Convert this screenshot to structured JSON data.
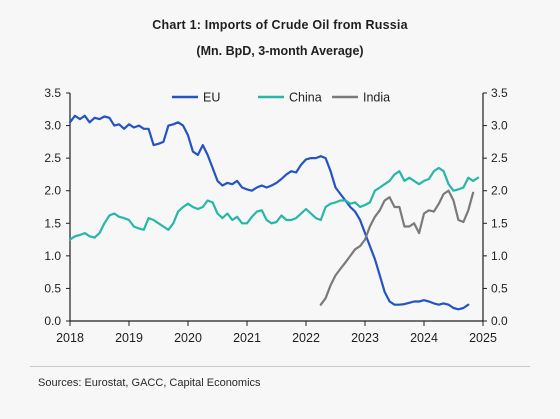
{
  "colors": {
    "EU": "#2453c3",
    "China": "#27b7a8",
    "India": "#7a7a7a",
    "axis": "#1f1f1f"
  },
  "header": {
    "title": "Chart 1: Imports of Crude Oil from Russia",
    "subtitle": "(Mn. BpD, 3-month Average)"
  },
  "footer": {
    "source": "Sources: Eurostat, GACC, Capital Economics"
  },
  "chart_data": {
    "type": "line",
    "title": "Chart 1: Imports of Crude Oil from Russia",
    "subtitle": "(Mn. BpD, 3-month Average)",
    "xlabel": "",
    "ylabel": "",
    "xlim": [
      2018,
      2025
    ],
    "ylim": [
      0,
      3.5
    ],
    "x_ticks": [
      "2018",
      "2019",
      "2020",
      "2021",
      "2022",
      "2023",
      "2024",
      "2025"
    ],
    "y_ticks_left": [
      "0.0",
      "0.5",
      "1.0",
      "1.5",
      "2.0",
      "2.5",
      "3.0",
      "3.5"
    ],
    "y_ticks_right": [
      "0.0",
      "0.5",
      "1.0",
      "1.5",
      "2.0",
      "2.5",
      "3.0",
      "3.5"
    ],
    "grid": false,
    "legend": "top-center",
    "series": [
      {
        "name": "EU",
        "x": [
          2018.0,
          2018.083,
          2018.167,
          2018.25,
          2018.333,
          2018.417,
          2018.5,
          2018.583,
          2018.667,
          2018.75,
          2018.833,
          2018.917,
          2019.0,
          2019.083,
          2019.167,
          2019.25,
          2019.333,
          2019.417,
          2019.5,
          2019.583,
          2019.667,
          2019.75,
          2019.833,
          2019.917,
          2020.0,
          2020.083,
          2020.167,
          2020.25,
          2020.333,
          2020.417,
          2020.5,
          2020.583,
          2020.667,
          2020.75,
          2020.833,
          2020.917,
          2021.0,
          2021.083,
          2021.167,
          2021.25,
          2021.333,
          2021.417,
          2021.5,
          2021.583,
          2021.667,
          2021.75,
          2021.833,
          2021.917,
          2022.0,
          2022.083,
          2022.167,
          2022.25,
          2022.333,
          2022.417,
          2022.5,
          2022.583,
          2022.667,
          2022.75,
          2022.833,
          2022.917,
          2023.0,
          2023.083,
          2023.167,
          2023.25,
          2023.333,
          2023.417,
          2023.5,
          2023.583,
          2023.667,
          2023.75,
          2023.833,
          2023.917,
          2024.0,
          2024.083,
          2024.167,
          2024.25,
          2024.333,
          2024.417,
          2024.5,
          2024.583,
          2024.667,
          2024.75
        ],
        "y": [
          3.05,
          3.15,
          3.1,
          3.15,
          3.05,
          3.12,
          3.1,
          3.14,
          3.12,
          3.0,
          3.02,
          2.95,
          3.02,
          2.97,
          3.0,
          2.95,
          2.95,
          2.7,
          2.72,
          2.75,
          3.0,
          3.02,
          3.05,
          3.0,
          2.85,
          2.6,
          2.55,
          2.7,
          2.55,
          2.35,
          2.15,
          2.08,
          2.12,
          2.1,
          2.15,
          2.05,
          2.02,
          2.0,
          2.05,
          2.08,
          2.05,
          2.08,
          2.12,
          2.18,
          2.25,
          2.3,
          2.28,
          2.4,
          2.48,
          2.5,
          2.5,
          2.53,
          2.5,
          2.3,
          2.05,
          1.95,
          1.85,
          1.75,
          1.68,
          1.55,
          1.35,
          1.15,
          0.95,
          0.7,
          0.45,
          0.3,
          0.25,
          0.25,
          0.26,
          0.28,
          0.3,
          0.3,
          0.32,
          0.3,
          0.27,
          0.25,
          0.27,
          0.25,
          0.2,
          0.18,
          0.2,
          0.25
        ]
      },
      {
        "name": "China",
        "x": [
          2018.0,
          2018.083,
          2018.167,
          2018.25,
          2018.333,
          2018.417,
          2018.5,
          2018.583,
          2018.667,
          2018.75,
          2018.833,
          2018.917,
          2019.0,
          2019.083,
          2019.167,
          2019.25,
          2019.333,
          2019.417,
          2019.5,
          2019.583,
          2019.667,
          2019.75,
          2019.833,
          2019.917,
          2020.0,
          2020.083,
          2020.167,
          2020.25,
          2020.333,
          2020.417,
          2020.5,
          2020.583,
          2020.667,
          2020.75,
          2020.833,
          2020.917,
          2021.0,
          2021.083,
          2021.167,
          2021.25,
          2021.333,
          2021.417,
          2021.5,
          2021.583,
          2021.667,
          2021.75,
          2021.833,
          2021.917,
          2022.0,
          2022.083,
          2022.167,
          2022.25,
          2022.333,
          2022.417,
          2022.5,
          2022.583,
          2022.667,
          2022.75,
          2022.833,
          2022.917,
          2023.0,
          2023.083,
          2023.167,
          2023.25,
          2023.333,
          2023.417,
          2023.5,
          2023.583,
          2023.667,
          2023.75,
          2023.833,
          2023.917,
          2024.0,
          2024.083,
          2024.167,
          2024.25,
          2024.333,
          2024.417,
          2024.5,
          2024.583,
          2024.667,
          2024.75,
          2024.833,
          2024.917
        ],
        "y": [
          1.25,
          1.3,
          1.32,
          1.35,
          1.3,
          1.28,
          1.35,
          1.5,
          1.62,
          1.65,
          1.6,
          1.58,
          1.55,
          1.45,
          1.42,
          1.4,
          1.58,
          1.55,
          1.5,
          1.45,
          1.4,
          1.5,
          1.68,
          1.75,
          1.8,
          1.75,
          1.72,
          1.75,
          1.85,
          1.82,
          1.65,
          1.58,
          1.65,
          1.55,
          1.6,
          1.5,
          1.5,
          1.6,
          1.68,
          1.7,
          1.55,
          1.5,
          1.52,
          1.62,
          1.55,
          1.55,
          1.58,
          1.65,
          1.72,
          1.65,
          1.58,
          1.55,
          1.75,
          1.8,
          1.82,
          1.85,
          1.85,
          1.8,
          1.82,
          1.75,
          1.78,
          1.82,
          2.0,
          2.05,
          2.1,
          2.15,
          2.25,
          2.3,
          2.15,
          2.2,
          2.15,
          2.1,
          2.15,
          2.18,
          2.3,
          2.35,
          2.3,
          2.1,
          2.0,
          2.02,
          2.05,
          2.2,
          2.15,
          2.2
        ]
      },
      {
        "name": "India",
        "x": [
          2022.25,
          2022.333,
          2022.417,
          2022.5,
          2022.583,
          2022.667,
          2022.75,
          2022.833,
          2022.917,
          2023.0,
          2023.083,
          2023.167,
          2023.25,
          2023.333,
          2023.417,
          2023.5,
          2023.583,
          2023.667,
          2023.75,
          2023.833,
          2023.917,
          2024.0,
          2024.083,
          2024.167,
          2024.25,
          2024.333,
          2024.417,
          2024.5,
          2024.583,
          2024.667,
          2024.75,
          2024.833
        ],
        "y": [
          0.25,
          0.35,
          0.55,
          0.7,
          0.8,
          0.9,
          1.0,
          1.1,
          1.15,
          1.25,
          1.45,
          1.6,
          1.7,
          1.85,
          1.9,
          1.75,
          1.75,
          1.45,
          1.45,
          1.5,
          1.35,
          1.65,
          1.7,
          1.68,
          1.8,
          1.95,
          2.0,
          1.85,
          1.55,
          1.52,
          1.7,
          1.97
        ]
      }
    ]
  }
}
